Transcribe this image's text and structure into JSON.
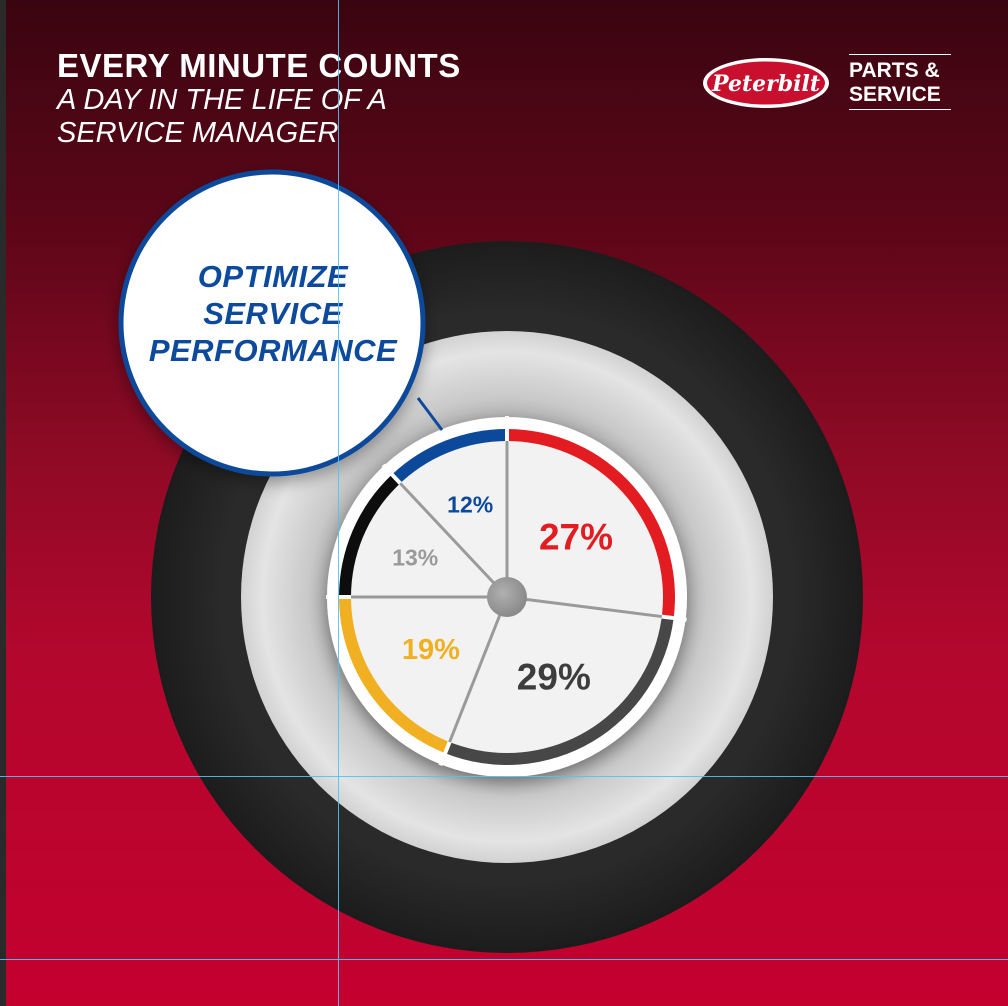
{
  "header": {
    "title": "EVERY MINUTE COUNTS",
    "subtitle": "A DAY IN THE LIFE OF A SERVICE MANAGER"
  },
  "brand": {
    "logo_text": "Peterbilt",
    "parts_line1": "PARTS &",
    "parts_line2": "SERVICE"
  },
  "callout": {
    "text_line1": "OPTIMIZE",
    "text_line2": "SERVICE",
    "text_line3": "PERFORMANCE"
  },
  "colors": {
    "red": "#e31b23",
    "dark_gray": "#474747",
    "yellow": "#f0b020",
    "black": "#111111",
    "blue": "#0d4a9b",
    "label_gray": "#9a9a9a"
  },
  "chart_data": {
    "type": "pie",
    "values": [
      27,
      29,
      19,
      13,
      12
    ],
    "labels": [
      "27%",
      "29%",
      "19%",
      "13%",
      "12%"
    ],
    "colors": [
      "#e31b23",
      "#474747",
      "#f0b020",
      "#111111",
      "#0d4a9b"
    ],
    "label_colors": [
      "#e31b23",
      "#3c3c3c",
      "#f0b020",
      "#9a9a9a",
      "#0d4a9b"
    ],
    "start_angle_deg": 0,
    "direction": "clockwise"
  }
}
